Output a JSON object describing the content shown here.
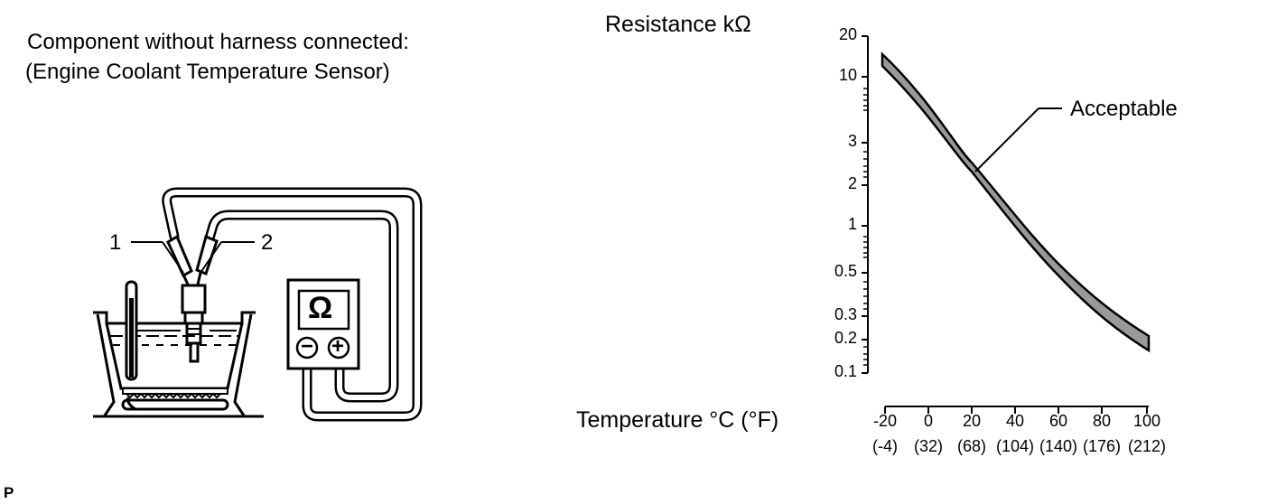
{
  "caption": {
    "line1": "Component without harness connected:",
    "line2": "(Engine Coolant Temperature Sensor)"
  },
  "test_setup": {
    "terminal_1": "1",
    "terminal_2": "2",
    "meter_symbol": "Ω",
    "minus_symbol": "−",
    "plus_symbol": "+"
  },
  "footer_mark": "P",
  "chart_data": {
    "type": "line",
    "ylabel": "Resistance kΩ",
    "xlabel": "Temperature °C (°F)",
    "y_scale": "log",
    "y_ticks": [
      "20",
      "10",
      "3",
      "2",
      "1",
      "0.5",
      "0.3",
      "0.2",
      "0.1"
    ],
    "x_ticks": [
      {
        "c": "-20",
        "f": "(-4)"
      },
      {
        "c": "0",
        "f": "(32)"
      },
      {
        "c": "20",
        "f": "(68)"
      },
      {
        "c": "40",
        "f": "(104)"
      },
      {
        "c": "60",
        "f": "(140)"
      },
      {
        "c": "80",
        "f": "(176)"
      },
      {
        "c": "100",
        "f": "(212)"
      }
    ],
    "band_label": "Acceptable",
    "series": [
      {
        "name": "Acceptable",
        "x": [
          -20,
          20,
          60,
          100
        ],
        "upper": [
          15,
          2.6,
          0.6,
          0.2
        ],
        "lower": [
          12,
          2.2,
          0.5,
          0.16
        ]
      }
    ]
  }
}
